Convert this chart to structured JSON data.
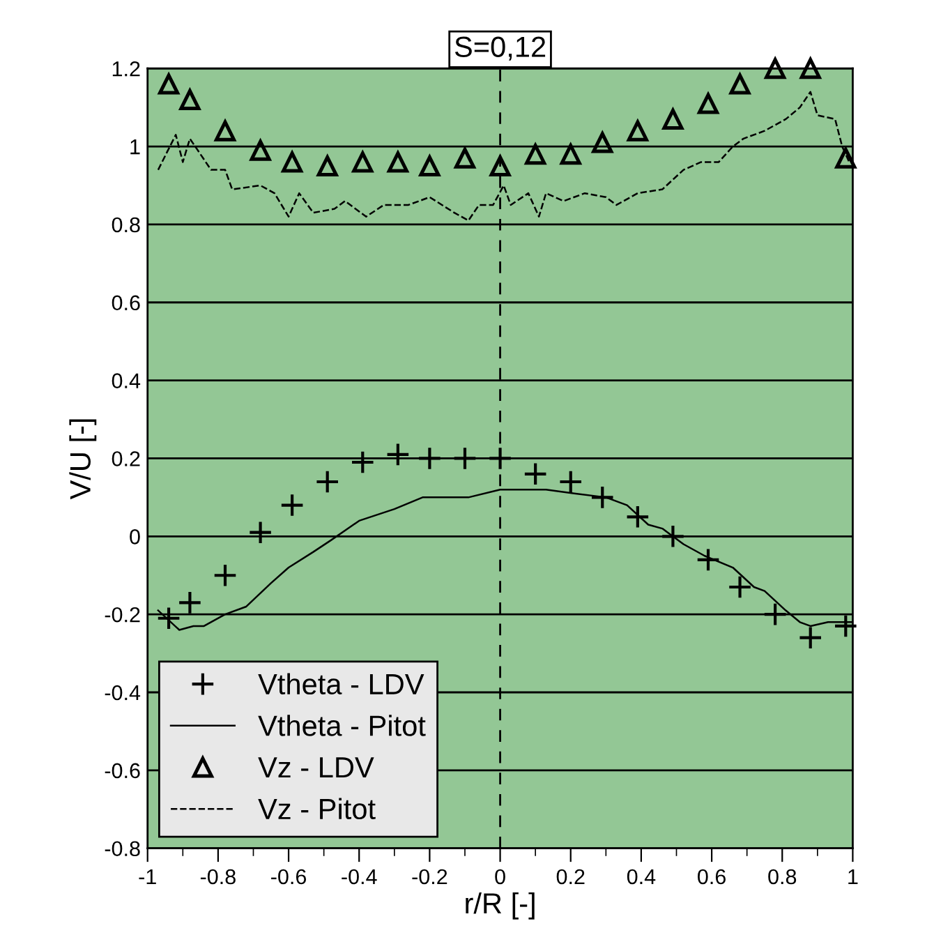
{
  "chart_data": {
    "type": "line",
    "title": "S=0,12",
    "xlabel": "r/R [-]",
    "ylabel": "V/U [-]",
    "xlim": [
      -1,
      1
    ],
    "ylim": [
      -0.8,
      1.2
    ],
    "xticks": [
      -1,
      {
        "value": -0.9,
        "label": null
      },
      -0.8,
      {
        "value": -0.7,
        "label": null
      },
      -0.6,
      {
        "value": -0.5,
        "label": null
      },
      -0.4,
      {
        "value": -0.3,
        "label": null
      },
      -0.2,
      {
        "value": -0.1,
        "label": null
      },
      0,
      {
        "value": 0.1,
        "label": null
      },
      0.2,
      {
        "value": 0.3,
        "label": null
      },
      0.4,
      {
        "value": 0.5,
        "label": null
      },
      0.6,
      {
        "value": 0.7,
        "label": null
      },
      0.8,
      {
        "value": 0.9,
        "label": null
      },
      1
    ],
    "yticks": [
      -0.8,
      -0.6,
      -0.4,
      -0.2,
      0,
      0.2,
      0.4,
      0.6,
      0.8,
      1,
      1.2
    ],
    "grid": "y",
    "legend": "bottom left",
    "ref_lines": [
      {
        "axis": "x",
        "value": 0,
        "color": "#000000",
        "line_style": "dashed"
      }
    ],
    "series": [
      {
        "name": "Vtheta - LDV",
        "type": "scatter",
        "marker": "cross",
        "color": "#000000",
        "x": [
          -0.94,
          -0.88,
          -0.78,
          -0.68,
          -0.59,
          -0.49,
          -0.39,
          -0.29,
          -0.2,
          -0.1,
          0,
          0.1,
          0.2,
          0.29,
          0.39,
          0.49,
          0.59,
          0.68,
          0.78,
          0.88,
          0.98
        ],
        "values": [
          -0.21,
          -0.17,
          -0.1,
          0.01,
          0.08,
          0.14,
          0.19,
          0.21,
          0.2,
          0.2,
          0.2,
          0.16,
          0.14,
          0.1,
          0.05,
          0,
          -0.06,
          -0.13,
          -0.2,
          -0.26,
          -0.23
        ]
      },
      {
        "name": "Vtheta - Pitot",
        "line_style": "solid",
        "color": "#000000",
        "x": [
          -0.97,
          -0.91,
          -0.87,
          -0.84,
          -0.78,
          -0.72,
          -0.65,
          -0.6,
          -0.53,
          -0.48,
          -0.4,
          -0.3,
          -0.22,
          -0.16,
          -0.09,
          0,
          0.06,
          0.13,
          0.21,
          0.3,
          0.36,
          0.42,
          0.46,
          0.52,
          0.58,
          0.66,
          0.72,
          0.75,
          0.81,
          0.85,
          0.88,
          0.93,
          1
        ],
        "values": [
          -0.19,
          -0.24,
          -0.23,
          -0.23,
          -0.2,
          -0.18,
          -0.12,
          -0.08,
          -0.04,
          -0.01,
          0.04,
          0.07,
          0.1,
          0.1,
          0.1,
          0.12,
          0.12,
          0.12,
          0.11,
          0.1,
          0.08,
          0.03,
          0.02,
          -0.02,
          -0.05,
          -0.08,
          -0.13,
          -0.14,
          -0.19,
          -0.22,
          -0.23,
          -0.22,
          -0.22
        ]
      },
      {
        "name": "Vz - LDV",
        "type": "scatter",
        "marker": "triangle",
        "color": "#000000",
        "x": [
          -0.94,
          -0.88,
          -0.78,
          -0.68,
          -0.59,
          -0.49,
          -0.39,
          -0.29,
          -0.2,
          -0.1,
          0,
          0.1,
          0.2,
          0.29,
          0.39,
          0.49,
          0.59,
          0.68,
          0.78,
          0.88,
          0.98
        ],
        "values": [
          1.16,
          1.12,
          1.04,
          0.99,
          0.96,
          0.95,
          0.96,
          0.96,
          0.95,
          0.97,
          0.95,
          0.98,
          0.98,
          1.01,
          1.04,
          1.07,
          1.11,
          1.16,
          1.2,
          1.2,
          0.97
        ]
      },
      {
        "name": "Vz - Pitot",
        "line_style": "dashed",
        "color": "#000000",
        "x": [
          -0.97,
          -0.92,
          -0.9,
          -0.88,
          -0.82,
          -0.78,
          -0.76,
          -0.68,
          -0.64,
          -0.6,
          -0.57,
          -0.53,
          -0.47,
          -0.44,
          -0.38,
          -0.33,
          -0.26,
          -0.2,
          -0.13,
          -0.09,
          -0.06,
          -0.02,
          0.01,
          0.03,
          0.08,
          0.11,
          0.13,
          0.18,
          0.24,
          0.3,
          0.33,
          0.39,
          0.46,
          0.52,
          0.57,
          0.62,
          0.66,
          0.69,
          0.75,
          0.81,
          0.85,
          0.88,
          0.9,
          0.95,
          0.97,
          0.99
        ],
        "values": [
          0.94,
          1.03,
          0.96,
          1.02,
          0.94,
          0.94,
          0.89,
          0.9,
          0.88,
          0.82,
          0.88,
          0.83,
          0.84,
          0.86,
          0.82,
          0.85,
          0.85,
          0.87,
          0.83,
          0.81,
          0.85,
          0.85,
          0.9,
          0.85,
          0.88,
          0.82,
          0.88,
          0.86,
          0.88,
          0.87,
          0.85,
          0.88,
          0.89,
          0.94,
          0.96,
          0.96,
          1,
          1.02,
          1.04,
          1.07,
          1.1,
          1.14,
          1.08,
          1.07,
          1,
          0.96
        ]
      }
    ]
  }
}
